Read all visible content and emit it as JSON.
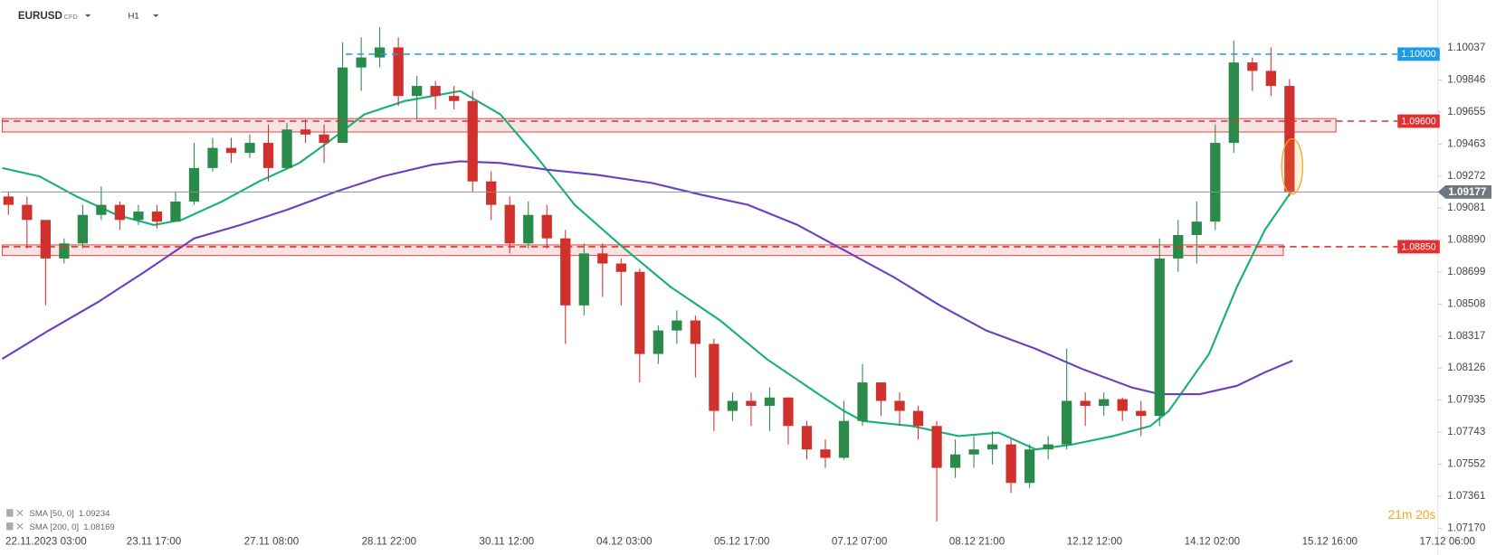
{
  "chart_data": {
    "type": "candlestick",
    "symbol": "EURUSD",
    "instrument_type": "CFD",
    "timeframe": "H1",
    "up_color": "#2a8a4a",
    "down_color": "#d0312d",
    "xlim": [
      -11.5,
      471.5
    ],
    "ylim": [
      1.07124,
      1.10323
    ],
    "xticks": [
      {
        "value": 0,
        "label": "22.11.2023  03:00"
      },
      {
        "value": 38,
        "label": "23.11 17:00"
      },
      {
        "value": 76,
        "label": "27.11 08:00"
      },
      {
        "value": 114,
        "label": "28.11 22:00"
      },
      {
        "value": 152,
        "label": "30.11 12:00"
      },
      {
        "value": 190,
        "label": "04.12 03:00"
      },
      {
        "value": 228,
        "label": "05.12 17:00"
      },
      {
        "value": 266,
        "label": "07.12 07:00"
      },
      {
        "value": 304,
        "label": "08.12 21:00"
      },
      {
        "value": 342,
        "label": "12.12 12:00"
      },
      {
        "value": 380,
        "label": "14.12 02:00"
      },
      {
        "value": 418,
        "label": "15.12 16:00"
      },
      {
        "value": 456,
        "label": "17.12 06:00"
      }
    ],
    "yticks": [
      1.10037,
      1.09846,
      1.09655,
      1.09463,
      1.09272,
      1.09081,
      {
        "value": 1.0889,
        "label": "1.08890"
      },
      1.08699,
      1.08508,
      1.08317,
      1.08126,
      1.07935,
      1.07743,
      1.07552,
      1.07361,
      {
        "value": 1.0717,
        "label": "1.07170"
      }
    ],
    "x": [
      -9,
      -3,
      3,
      9,
      15,
      21,
      27,
      33,
      39,
      45,
      51,
      57,
      63,
      69,
      75,
      81,
      87,
      93,
      99,
      105,
      111,
      117,
      123,
      129,
      135,
      141,
      147,
      153,
      159,
      165,
      171,
      177,
      183,
      189,
      195,
      201,
      207,
      213,
      219,
      225,
      231,
      237,
      243,
      249,
      255,
      261,
      267,
      273,
      279,
      285,
      291,
      297,
      303,
      309,
      315,
      321,
      327,
      333,
      339,
      345,
      351,
      357,
      363,
      369,
      375,
      381,
      387,
      393,
      399,
      405
    ],
    "open": [
      1.0915,
      1.091,
      1.0901,
      1.0878,
      1.0887,
      1.0904,
      1.091,
      1.0901,
      1.0906,
      1.09,
      1.0912,
      1.0932,
      1.0944,
      1.0941,
      1.0947,
      1.0932,
      1.0955,
      1.0952,
      1.0947,
      1.0992,
      1.0998,
      1.1004,
      1.0975,
      1.0981,
      1.0975,
      1.0972,
      1.0924,
      1.091,
      1.0887,
      1.0904,
      1.089,
      1.085,
      1.0881,
      1.0875,
      1.087,
      1.0821,
      1.0835,
      1.0841,
      1.0827,
      1.0787,
      1.0793,
      1.079,
      1.0795,
      1.0778,
      1.0764,
      1.0759,
      1.0781,
      1.0804,
      1.0793,
      1.0787,
      1.0778,
      1.0753,
      1.0761,
      1.0764,
      1.0767,
      1.0744,
      1.0764,
      1.0767,
      1.0793,
      1.079,
      1.0794,
      1.0787,
      1.0784,
      1.0878,
      1.0892,
      1.09,
      1.0947,
      1.0995,
      1.099,
      1.0981
    ],
    "high": [
      1.0918,
      1.0915,
      1.0901,
      1.089,
      1.091,
      1.0921,
      1.0912,
      1.091,
      1.091,
      1.0918,
      1.0947,
      1.095,
      1.095,
      1.0952,
      1.0958,
      1.0959,
      1.0961,
      1.0958,
      1.1007,
      1.101,
      1.1016,
      1.101,
      1.0987,
      1.0984,
      1.0981,
      1.0978,
      1.093,
      1.0915,
      1.0912,
      1.091,
      1.0895,
      1.0887,
      1.0887,
      1.0878,
      1.0872,
      1.0838,
      1.0847,
      1.0844,
      1.083,
      1.0798,
      1.0798,
      1.0801,
      1.0795,
      1.0781,
      1.077,
      1.0793,
      1.0815,
      1.0804,
      1.0798,
      1.079,
      1.0781,
      1.077,
      1.0772,
      1.0775,
      1.077,
      1.0767,
      1.0772,
      1.0824,
      1.0798,
      1.0798,
      1.0795,
      1.0793,
      1.089,
      1.0901,
      1.0912,
      1.0958,
      1.1008,
      1.0998,
      1.1004,
      1.0985
    ],
    "low": [
      1.0904,
      1.0884,
      1.085,
      1.0875,
      1.0884,
      1.0901,
      1.0895,
      1.0898,
      1.0896,
      1.09,
      1.091,
      1.093,
      1.0935,
      1.0938,
      1.0924,
      1.0932,
      1.0947,
      1.0935,
      1.0947,
      1.0978,
      1.0992,
      1.0969,
      1.0961,
      1.0967,
      1.0967,
      1.0918,
      1.0901,
      1.0881,
      1.0884,
      1.0884,
      1.0827,
      1.0844,
      1.0855,
      1.085,
      1.0804,
      1.0815,
      1.0827,
      1.0807,
      1.0775,
      1.0781,
      1.0778,
      1.0775,
      1.0767,
      1.0758,
      1.0753,
      1.0758,
      1.0778,
      1.0784,
      1.0778,
      1.077,
      1.0721,
      1.0747,
      1.0753,
      1.0755,
      1.0738,
      1.0741,
      1.0758,
      1.0764,
      1.0778,
      1.0784,
      1.0781,
      1.0772,
      1.0778,
      1.087,
      1.0875,
      1.0895,
      1.0941,
      1.0978,
      1.0975,
      1.0915
    ],
    "close": [
      1.091,
      1.0901,
      1.0878,
      1.0887,
      1.0904,
      1.091,
      1.0901,
      1.0906,
      1.09,
      1.0912,
      1.0932,
      1.0944,
      1.0941,
      1.0947,
      1.0932,
      1.0955,
      1.0952,
      1.0947,
      1.0992,
      1.0998,
      1.1004,
      1.0975,
      1.0981,
      1.0975,
      1.0972,
      1.0924,
      1.091,
      1.0887,
      1.0904,
      1.089,
      1.085,
      1.0881,
      1.0875,
      1.087,
      1.0821,
      1.0835,
      1.0841,
      1.0827,
      1.0787,
      1.0793,
      1.079,
      1.0795,
      1.0778,
      1.0764,
      1.0759,
      1.0781,
      1.0804,
      1.0793,
      1.0787,
      1.0778,
      1.0753,
      1.0761,
      1.0764,
      1.0767,
      1.0744,
      1.0764,
      1.0767,
      1.0793,
      1.079,
      1.0794,
      1.0787,
      1.0784,
      1.0878,
      1.0892,
      1.09,
      1.0947,
      1.0995,
      1.099,
      1.0981,
      1.0918
    ],
    "sma": [
      {
        "name": "SMA [50, 0]",
        "last": 1.09234,
        "color": "#17b07c",
        "x": [
          -11,
          1,
          13,
          26,
          38,
          47,
          60,
          72,
          85,
          94,
          106,
          119,
          137,
          150,
          162,
          174,
          190,
          205,
          221,
          236,
          252,
          261,
          267,
          283,
          298,
          311,
          323,
          335,
          348,
          360,
          366,
          379,
          388,
          397,
          406
        ],
        "values": [
          1.0932,
          1.0927,
          1.0915,
          1.0904,
          1.0898,
          1.0901,
          1.0912,
          1.0924,
          1.0935,
          1.0947,
          1.0964,
          1.0972,
          1.0978,
          1.0964,
          1.0938,
          1.091,
          1.0884,
          1.0861,
          1.0841,
          1.0818,
          1.0798,
          1.0787,
          1.0781,
          1.0778,
          1.0772,
          1.0774,
          1.0764,
          1.0767,
          1.0772,
          1.0778,
          1.0787,
          1.0821,
          1.0861,
          1.0895,
          1.0919
        ]
      },
      {
        "name": "SMA [200, 0]",
        "last": 1.08169,
        "color": "#6a3fc1",
        "x": [
          -11,
          4,
          20,
          35,
          51,
          66,
          81,
          97,
          112,
          128,
          137,
          150,
          165,
          181,
          199,
          215,
          230,
          246,
          261,
          277,
          292,
          307,
          323,
          338,
          354,
          363,
          376,
          388,
          397,
          406
        ],
        "values": [
          1.0818,
          1.0835,
          1.0852,
          1.087,
          1.089,
          1.0898,
          1.0907,
          1.0918,
          1.0927,
          1.0934,
          1.0936,
          1.0935,
          1.0931,
          1.0928,
          1.0923,
          1.0916,
          1.091,
          1.0898,
          1.0883,
          1.0867,
          1.085,
          1.0835,
          1.0824,
          1.0812,
          1.0801,
          1.0797,
          1.0797,
          1.0802,
          1.081,
          1.0817
        ]
      }
    ],
    "zones": [
      {
        "top": 1.09615,
        "bottom": 1.09535,
        "x": [
          -11,
          420
        ]
      },
      {
        "top": 1.08861,
        "bottom": 1.08798,
        "x": [
          -11,
          403
        ]
      }
    ],
    "levels": [
      {
        "value": 1.1,
        "label": "1.10000",
        "color": "#1e9be6",
        "x0": 100
      },
      {
        "value": 1.096,
        "label": "1.09600",
        "color": "#e03030",
        "x0": -11
      },
      {
        "value": 1.0885,
        "label": "1.08850",
        "color": "#e03030",
        "x0": -11
      }
    ],
    "current_price": 1.09177,
    "timer": "21m 20s"
  }
}
